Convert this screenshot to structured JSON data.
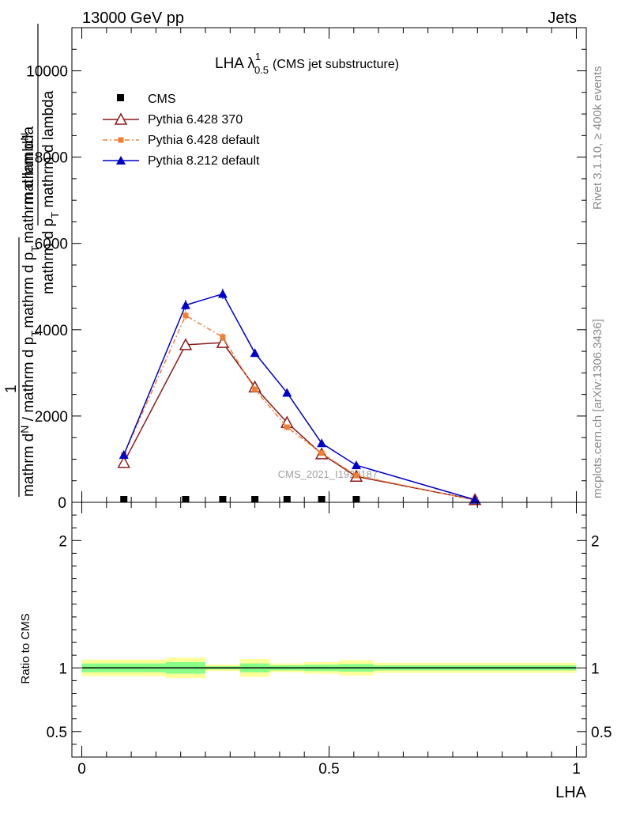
{
  "header": {
    "energy_label": "13000 GeV pp",
    "process_label": "Jets"
  },
  "side_labels": {
    "rivet": "Rivet 3.1.10, ≥ 400k events",
    "mcplots": "mcplots.cern.ch [arXiv:1306.3436]"
  },
  "watermark": "CMS_2021_I1920187",
  "title": {
    "main": "LHA λ",
    "sup": "1",
    "sub": "0.5",
    "suffix": "(CMS jet substructure)"
  },
  "ylabel_top": {
    "prefix": "mathrm d",
    "n": "N",
    "den": "mathrm d p",
    "den_sub": "T",
    "den_tail": " mathrm d lambda"
  },
  "ylabel_bottom": {
    "one": "1",
    "a": "mathrm d",
    "n": "N",
    "b": " / mathrm d p",
    "b_sub": "T",
    "c": "mathrm d p",
    "c_sub": "T",
    "tail": "mathrm d lambda"
  },
  "ratio_ylabel": "Ratio to CMS",
  "xlabel": "LHA",
  "legend": [
    {
      "label": "CMS"
    },
    {
      "label": "Pythia 6.428 370"
    },
    {
      "label": "Pythia 6.428 default"
    },
    {
      "label": "Pythia 8.212 default"
    }
  ],
  "chart_data": [
    {
      "type": "line",
      "panel": "main",
      "xlim": [
        -0.02,
        1.02
      ],
      "ylim": [
        0,
        11000
      ],
      "yticks": [
        {
          "value": 2000,
          "label": "2000"
        },
        {
          "value": 4000,
          "label": "4000"
        },
        {
          "value": 6000,
          "label": "6000"
        },
        {
          "value": 8000,
          "label": "8000"
        },
        {
          "value": 10000,
          "label": "10000"
        }
      ],
      "series": [
        {
          "name": "CMS",
          "color": "#000000",
          "marker": "square",
          "x": [
            0.085,
            0.21,
            0.285,
            0.35,
            0.415,
            0.485,
            0.555
          ],
          "y": [
            0,
            0,
            0,
            0,
            0,
            0,
            0
          ]
        },
        {
          "name": "Pythia 6.428 370",
          "color": "#8b1a1a",
          "marker": "triangle-open",
          "x": [
            0.085,
            0.21,
            0.285,
            0.35,
            0.415,
            0.485,
            0.555,
            0.795
          ],
          "y": [
            920,
            3650,
            3700,
            2670,
            1850,
            1120,
            600,
            60
          ],
          "err": [
            60,
            90,
            90,
            70,
            55,
            40,
            25,
            8
          ]
        },
        {
          "name": "Pythia 6.428 default",
          "color": "#f08030",
          "marker": "square-filled",
          "x": [
            0.085,
            0.21,
            0.285,
            0.35,
            0.415,
            0.485,
            0.555,
            0.795
          ],
          "y": [
            1100,
            4330,
            3830,
            2620,
            1740,
            1140,
            620,
            55
          ],
          "err": [
            60,
            100,
            90,
            70,
            55,
            40,
            25,
            8
          ]
        },
        {
          "name": "Pythia 8.212 default",
          "color": "#0000cc",
          "marker": "triangle-filled",
          "x": [
            0.085,
            0.21,
            0.285,
            0.35,
            0.415,
            0.485,
            0.555,
            0.795
          ],
          "y": [
            1100,
            4570,
            4830,
            3460,
            2540,
            1370,
            860,
            60
          ],
          "err": [
            60,
            120,
            120,
            90,
            75,
            50,
            30,
            8
          ]
        }
      ]
    },
    {
      "type": "area",
      "panel": "ratio",
      "ylabel": "Ratio to CMS",
      "xlabel": "LHA",
      "xlim": [
        -0.02,
        1.02
      ],
      "ylim": [
        0.3,
        2.3
      ],
      "yticks": [
        {
          "value": 0.5,
          "label": "0.5"
        },
        {
          "value": 1,
          "label": "1"
        },
        {
          "value": 2,
          "label": "2"
        }
      ],
      "xticks": [
        {
          "value": 0,
          "label": "0"
        },
        {
          "value": 0.5,
          "label": "0.5"
        },
        {
          "value": 1,
          "label": "1"
        }
      ],
      "reference": 1,
      "bins": [
        {
          "lo": 0.0,
          "hi": 0.17,
          "green": 0.035,
          "yellow": 0.065
        },
        {
          "lo": 0.17,
          "hi": 0.25,
          "green": 0.045,
          "yellow": 0.08
        },
        {
          "lo": 0.25,
          "hi": 0.32,
          "green": 0.012,
          "yellow": 0.025
        },
        {
          "lo": 0.32,
          "hi": 0.38,
          "green": 0.035,
          "yellow": 0.07
        },
        {
          "lo": 0.38,
          "hi": 0.45,
          "green": 0.02,
          "yellow": 0.035
        },
        {
          "lo": 0.45,
          "hi": 0.52,
          "green": 0.025,
          "yellow": 0.045
        },
        {
          "lo": 0.52,
          "hi": 0.59,
          "green": 0.03,
          "yellow": 0.06
        },
        {
          "lo": 0.59,
          "hi": 1.0,
          "green": 0.02,
          "yellow": 0.04
        }
      ]
    }
  ]
}
